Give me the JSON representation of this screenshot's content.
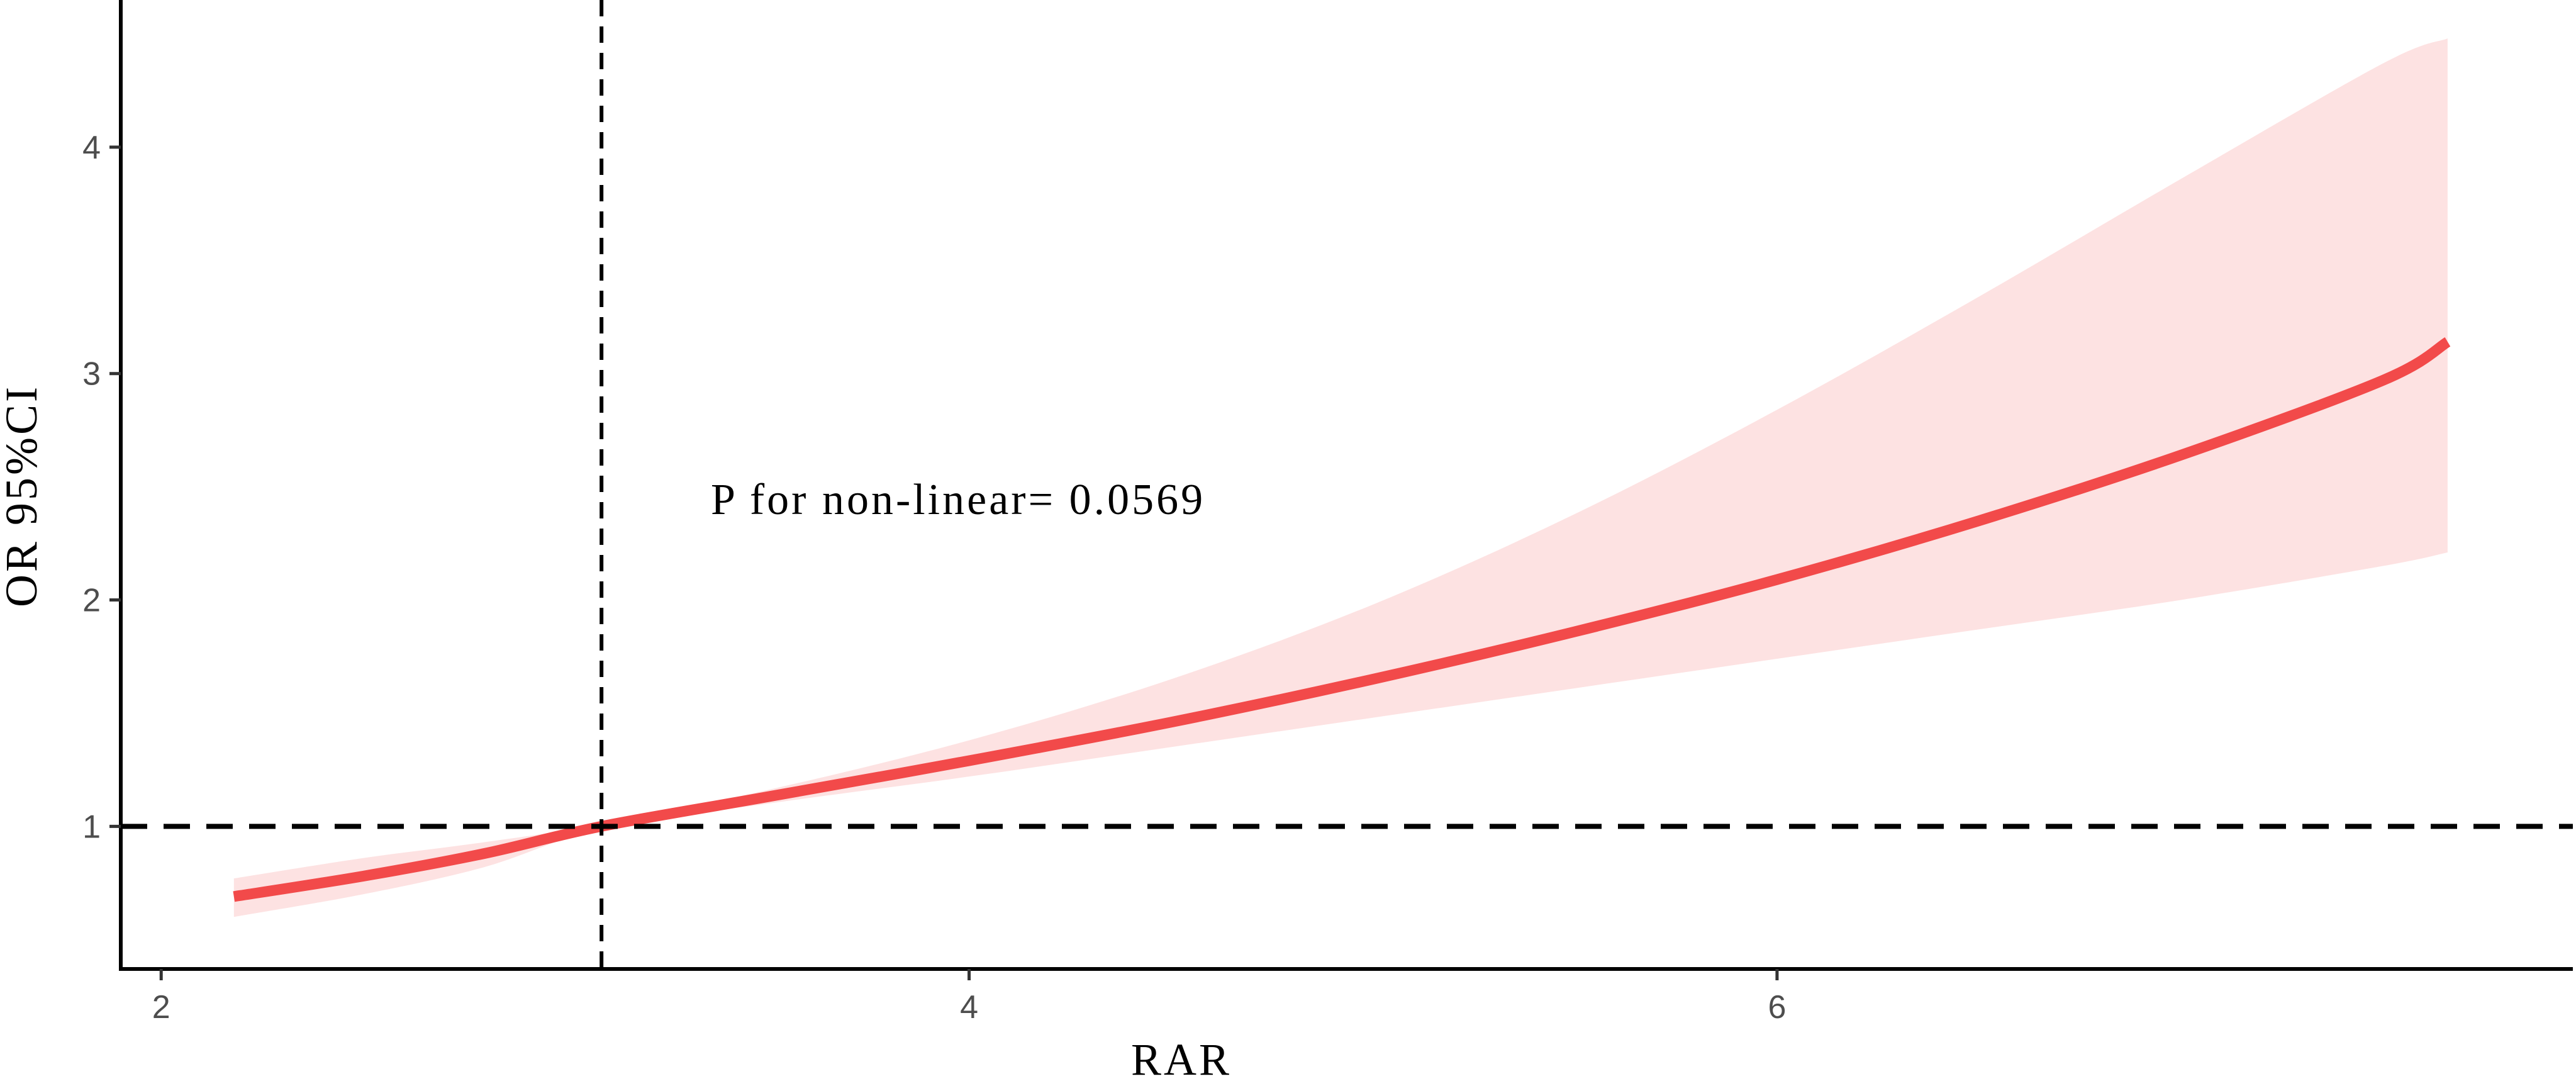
{
  "chart_data": {
    "type": "line",
    "title": "",
    "xlabel": "RAR",
    "ylabel": "OR 95%CI",
    "annotation": "P for non-linear= 0.0569",
    "xlim": [
      1.9,
      7.97
    ],
    "ylim": [
      0.37,
      4.65
    ],
    "x_ticks": [
      2,
      4,
      6
    ],
    "y_ticks": [
      1,
      2,
      3,
      4
    ],
    "grid": false,
    "legend": "none",
    "reference_lines": {
      "x": 3.09,
      "y": 1
    },
    "colors": {
      "line": "#f24a4a",
      "ci_band": "#fde2e2",
      "reference": "#000000",
      "axis": "#000000"
    },
    "series": [
      {
        "x": [
          2.18,
          2.5,
          2.8,
          3.09,
          3.5,
          4.0,
          4.5,
          5.0,
          5.5,
          6.0,
          6.5,
          7.0,
          7.5,
          7.66
        ],
        "y": [
          0.69,
          0.78,
          0.88,
          1.0,
          1.13,
          1.29,
          1.46,
          1.65,
          1.86,
          2.09,
          2.35,
          2.64,
          2.97,
          3.14
        ],
        "lower": [
          0.6,
          0.7,
          0.82,
          0.99,
          1.1,
          1.22,
          1.35,
          1.48,
          1.61,
          1.74,
          1.87,
          2.0,
          2.15,
          2.21
        ],
        "upper": [
          0.77,
          0.86,
          0.93,
          1.01,
          1.16,
          1.38,
          1.65,
          1.98,
          2.38,
          2.84,
          3.34,
          3.86,
          4.37,
          4.48
        ]
      }
    ]
  }
}
